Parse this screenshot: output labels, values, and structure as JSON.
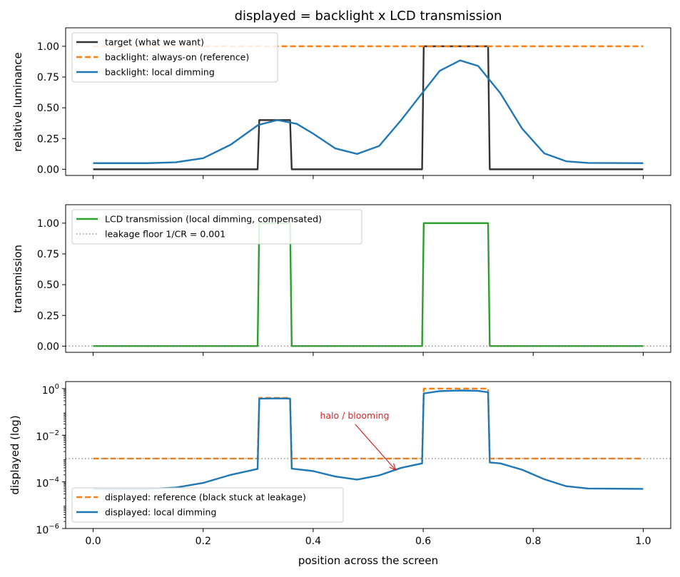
{
  "chart_data": [
    {
      "type": "line",
      "title": "displayed = backlight x LCD transmission",
      "xlabel": "",
      "ylabel": "relative luminance",
      "xlim": [
        -0.05,
        1.05
      ],
      "ylim": [
        -0.05,
        1.15
      ],
      "xticks": [
        0.0,
        0.2,
        0.4,
        0.6,
        0.8,
        1.0
      ],
      "xtick_labels_visible": false,
      "yticks": [
        0.0,
        0.25,
        0.5,
        0.75,
        1.0
      ],
      "ytick_labels": [
        "0.00",
        "0.25",
        "0.50",
        "0.75",
        "1.00"
      ],
      "legend": "top-left",
      "grid": false,
      "series": [
        {
          "name": "target (what we want)",
          "color": "#333333",
          "style": "solid",
          "points": [
            [
              0.0,
              0.0
            ],
            [
              0.299,
              0.0
            ],
            [
              0.302,
              0.4
            ],
            [
              0.358,
              0.4
            ],
            [
              0.361,
              0.0
            ],
            [
              0.598,
              0.0
            ],
            [
              0.601,
              1.0
            ],
            [
              0.718,
              1.0
            ],
            [
              0.721,
              0.0
            ],
            [
              1.0,
              0.0
            ]
          ]
        },
        {
          "name": "backlight: always-on (reference)",
          "color": "#ff7f0e",
          "style": "dashed",
          "points": [
            [
              0.0,
              1.0
            ],
            [
              1.0,
              1.0
            ]
          ]
        },
        {
          "name": "backlight: local dimming",
          "color": "#1f77b4",
          "style": "solid",
          "points": [
            [
              0.0,
              0.05
            ],
            [
              0.1,
              0.05
            ],
            [
              0.15,
              0.057
            ],
            [
              0.2,
              0.09
            ],
            [
              0.25,
              0.2
            ],
            [
              0.3,
              0.36
            ],
            [
              0.335,
              0.4
            ],
            [
              0.37,
              0.37
            ],
            [
              0.4,
              0.29
            ],
            [
              0.44,
              0.17
            ],
            [
              0.48,
              0.125
            ],
            [
              0.52,
              0.19
            ],
            [
              0.56,
              0.4
            ],
            [
              0.6,
              0.63
            ],
            [
              0.63,
              0.8
            ],
            [
              0.667,
              0.885
            ],
            [
              0.7,
              0.84
            ],
            [
              0.74,
              0.62
            ],
            [
              0.78,
              0.33
            ],
            [
              0.82,
              0.13
            ],
            [
              0.86,
              0.065
            ],
            [
              0.9,
              0.052
            ],
            [
              1.0,
              0.05
            ]
          ]
        }
      ]
    },
    {
      "type": "line",
      "title": "",
      "xlabel": "",
      "ylabel": "transmission",
      "xlim": [
        -0.05,
        1.05
      ],
      "ylim": [
        -0.05,
        1.15
      ],
      "xticks": [
        0.0,
        0.2,
        0.4,
        0.6,
        0.8,
        1.0
      ],
      "xtick_labels_visible": false,
      "yticks": [
        0.0,
        0.25,
        0.5,
        0.75,
        1.0
      ],
      "ytick_labels": [
        "0.00",
        "0.25",
        "0.50",
        "0.75",
        "1.00"
      ],
      "legend": "top-left",
      "grid": false,
      "series": [
        {
          "name": "LCD transmission (local dimming, compensated)",
          "color": "#2ca02c",
          "style": "solid",
          "points": [
            [
              0.0,
              0.001
            ],
            [
              0.299,
              0.001
            ],
            [
              0.302,
              1.0
            ],
            [
              0.358,
              1.0
            ],
            [
              0.361,
              0.001
            ],
            [
              0.598,
              0.001
            ],
            [
              0.601,
              1.0
            ],
            [
              0.718,
              1.0
            ],
            [
              0.721,
              0.001
            ],
            [
              1.0,
              0.001
            ]
          ]
        },
        {
          "name": "leakage floor 1/CR = 0.001",
          "color": "#888888",
          "style": "dotted",
          "points": [
            [
              -0.05,
              0.001
            ],
            [
              1.05,
              0.001
            ]
          ]
        }
      ]
    },
    {
      "type": "line",
      "title": "",
      "xlabel": "position across the screen",
      "ylabel": "displayed (log)",
      "yscale": "log",
      "xlim": [
        -0.05,
        1.05
      ],
      "ylim": [
        1e-06,
        2.0
      ],
      "xticks": [
        0.0,
        0.2,
        0.4,
        0.6,
        0.8,
        1.0
      ],
      "xtick_labels": [
        "0.0",
        "0.2",
        "0.4",
        "0.6",
        "0.8",
        "1.0"
      ],
      "yticks": [
        1e-06,
        0.0001,
        0.01,
        1.0
      ],
      "ytick_labels": [
        {
          "base": "10",
          "exp": "−6"
        },
        {
          "base": "10",
          "exp": "−4"
        },
        {
          "base": "10",
          "exp": "−2"
        },
        {
          "base": "10",
          "exp": "0"
        }
      ],
      "legend": "bottom-left",
      "grid": false,
      "annotation": {
        "text": "halo / blooming",
        "color": "#d62728",
        "text_xy": [
          0.47,
          0.005
        ],
        "arrow_to": [
          0.55,
          0.00032
        ]
      },
      "series": [
        {
          "name": "displayed: reference (black stuck at leakage)",
          "color": "#ff7f0e",
          "style": "dashed",
          "points": [
            [
              0.0,
              0.001
            ],
            [
              0.299,
              0.001
            ],
            [
              0.302,
              0.4
            ],
            [
              0.358,
              0.4
            ],
            [
              0.361,
              0.001
            ],
            [
              0.598,
              0.001
            ],
            [
              0.601,
              1.0
            ],
            [
              0.718,
              1.0
            ],
            [
              0.721,
              0.001
            ],
            [
              1.0,
              0.001
            ]
          ]
        },
        {
          "name": "displayed: local dimming",
          "color": "#1f77b4",
          "style": "solid",
          "points": [
            [
              0.0,
              5e-05
            ],
            [
              0.1,
              5e-05
            ],
            [
              0.15,
              5.7e-05
            ],
            [
              0.2,
              9e-05
            ],
            [
              0.25,
              0.0002
            ],
            [
              0.299,
              0.00036
            ],
            [
              0.302,
              0.37
            ],
            [
              0.335,
              0.38
            ],
            [
              0.358,
              0.375
            ],
            [
              0.361,
              0.00037
            ],
            [
              0.4,
              0.00029
            ],
            [
              0.44,
              0.00017
            ],
            [
              0.48,
              0.000125
            ],
            [
              0.52,
              0.00019
            ],
            [
              0.56,
              0.0004
            ],
            [
              0.598,
              0.00062
            ],
            [
              0.601,
              0.62
            ],
            [
              0.63,
              0.78
            ],
            [
              0.667,
              0.83
            ],
            [
              0.7,
              0.8
            ],
            [
              0.718,
              0.7
            ],
            [
              0.721,
              0.00068
            ],
            [
              0.74,
              0.00062
            ],
            [
              0.78,
              0.00033
            ],
            [
              0.82,
              0.00013
            ],
            [
              0.86,
              6.5e-05
            ],
            [
              0.9,
              5.2e-05
            ],
            [
              1.0,
              5e-05
            ]
          ]
        },
        {
          "name": "",
          "color": "#888888",
          "style": "dotted",
          "points": [
            [
              -0.05,
              0.001
            ],
            [
              1.05,
              0.001
            ]
          ]
        }
      ]
    }
  ]
}
